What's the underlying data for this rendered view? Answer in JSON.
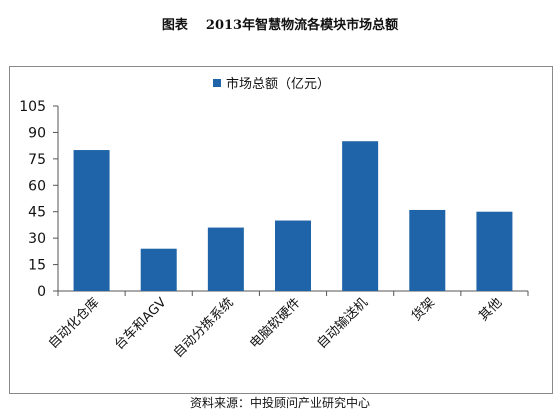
{
  "figure_label": "图表",
  "title": "2013年智慧物流各模块市场总额",
  "source": "资料来源：中投顾问产业研究中心",
  "chart_data": {
    "type": "bar",
    "categories": [
      "自动化仓库",
      "台车和AGV",
      "自动分拣系统",
      "电脑软硬件",
      "自动输送机",
      "货架",
      "其他"
    ],
    "series": [
      {
        "name": "市场总额（亿元）",
        "values": [
          80,
          24,
          36,
          40,
          85,
          46,
          45
        ],
        "color": "#1f64a8"
      }
    ],
    "ylim": [
      0,
      105
    ],
    "yticks": [
      0,
      15,
      30,
      45,
      60,
      75,
      90,
      105
    ],
    "grid": false,
    "legend": "top-center"
  }
}
